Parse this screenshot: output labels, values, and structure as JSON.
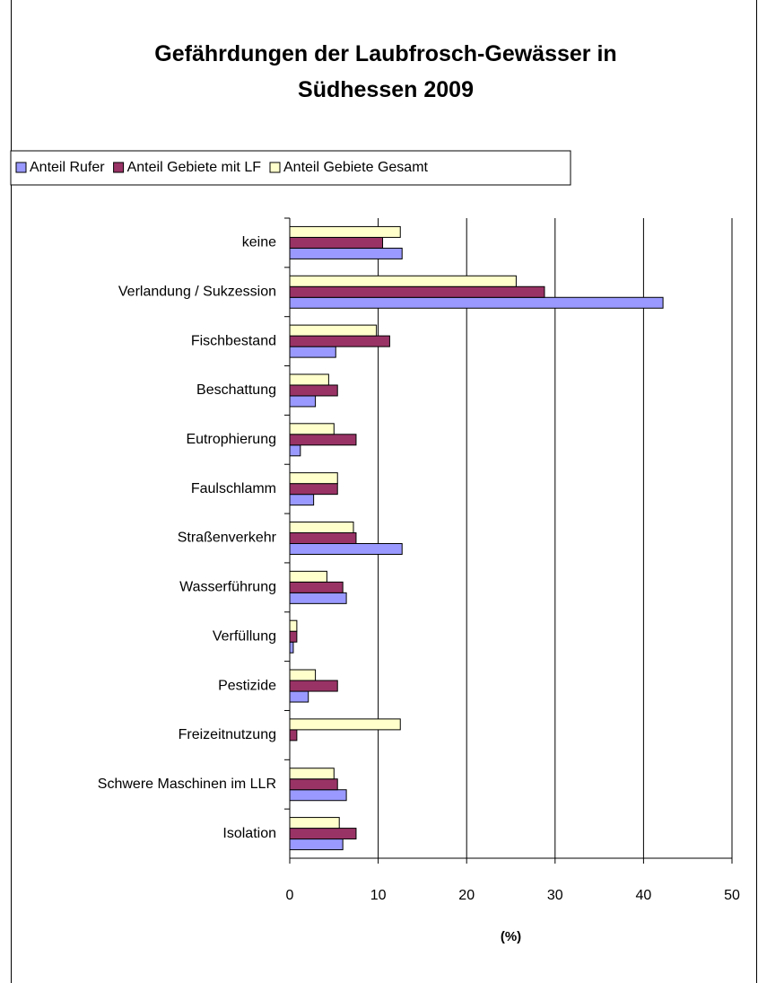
{
  "chart_data": {
    "type": "hbar",
    "title": "Gefährdungen der Laubfrosch-Gewässer in Südhessen 2009",
    "x_label": "(%)",
    "categories": [
      "keine",
      "Verlandung / Sukzession",
      "Fischbestand",
      "Beschattung",
      "Eutrophierung",
      "Faulschlamm",
      "Straßenverkehr",
      "Wasserführung",
      "Verfüllung",
      "Pestizide",
      "Freizeitnutzung",
      "Schwere Maschinen im LLR",
      "Isolation"
    ],
    "series": [
      {
        "name": "Anteil Rufer",
        "color": "#9999ff",
        "values": [
          12.7,
          42.2,
          5.2,
          2.9,
          1.2,
          2.7,
          12.7,
          6.4,
          0.4,
          2.1,
          0,
          6.4,
          6.0
        ]
      },
      {
        "name": "Anteil Gebiete mit LF",
        "color": "#993366",
        "values": [
          10.5,
          28.8,
          11.3,
          5.4,
          7.5,
          5.4,
          7.5,
          6.0,
          0.8,
          5.4,
          0.8,
          5.4,
          7.5
        ]
      },
      {
        "name": "Anteil Gebiete Gesamt",
        "color": "#ffffcc",
        "values": [
          12.5,
          25.6,
          9.8,
          4.4,
          5.0,
          5.4,
          7.2,
          4.2,
          0.8,
          2.9,
          12.5,
          5.0,
          5.6
        ]
      }
    ],
    "xlim": [
      0,
      50
    ],
    "xticks": [
      0,
      10,
      20,
      30,
      40,
      50
    ],
    "grid": true,
    "legend": "top"
  }
}
